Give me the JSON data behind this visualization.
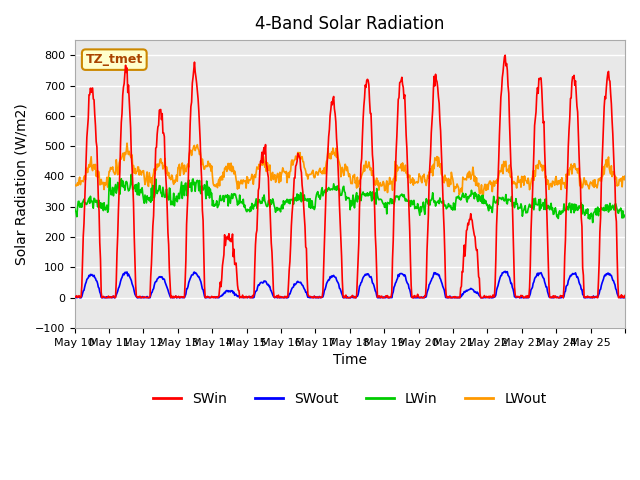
{
  "title": "4-Band Solar Radiation",
  "xlabel": "Time",
  "ylabel": "Solar Radiation (W/m2)",
  "ylim": [
    -100,
    850
  ],
  "yticks": [
    -100,
    0,
    100,
    200,
    300,
    400,
    500,
    600,
    700,
    800
  ],
  "background_color": "#ffffff",
  "plot_bg_color": "#e8e8e8",
  "grid_color": "#ffffff",
  "annotation_text": "TZ_tmet",
  "annotation_bg": "#ffffcc",
  "annotation_border": "#cc8800",
  "series_colors": {
    "SWin": "#ff0000",
    "SWout": "#0000ff",
    "LWin": "#00cc00",
    "LWout": "#ff9900"
  },
  "line_width": 1.2,
  "legend_colors": [
    "#ff0000",
    "#0000ff",
    "#00cc00",
    "#ff9900"
  ],
  "legend_labels": [
    "SWin",
    "SWout",
    "LWin",
    "LWout"
  ],
  "x_tick_labels": [
    "May 10",
    "May 11",
    "May 12",
    "May 13",
    "May 14",
    "May 15",
    "May 16",
    "May 17",
    "May 18",
    "May 19",
    "May 20",
    "May 21",
    "May 22",
    "May 23",
    "May 24",
    "May 25",
    ""
  ],
  "num_days": 16,
  "pts_per_day": 48
}
